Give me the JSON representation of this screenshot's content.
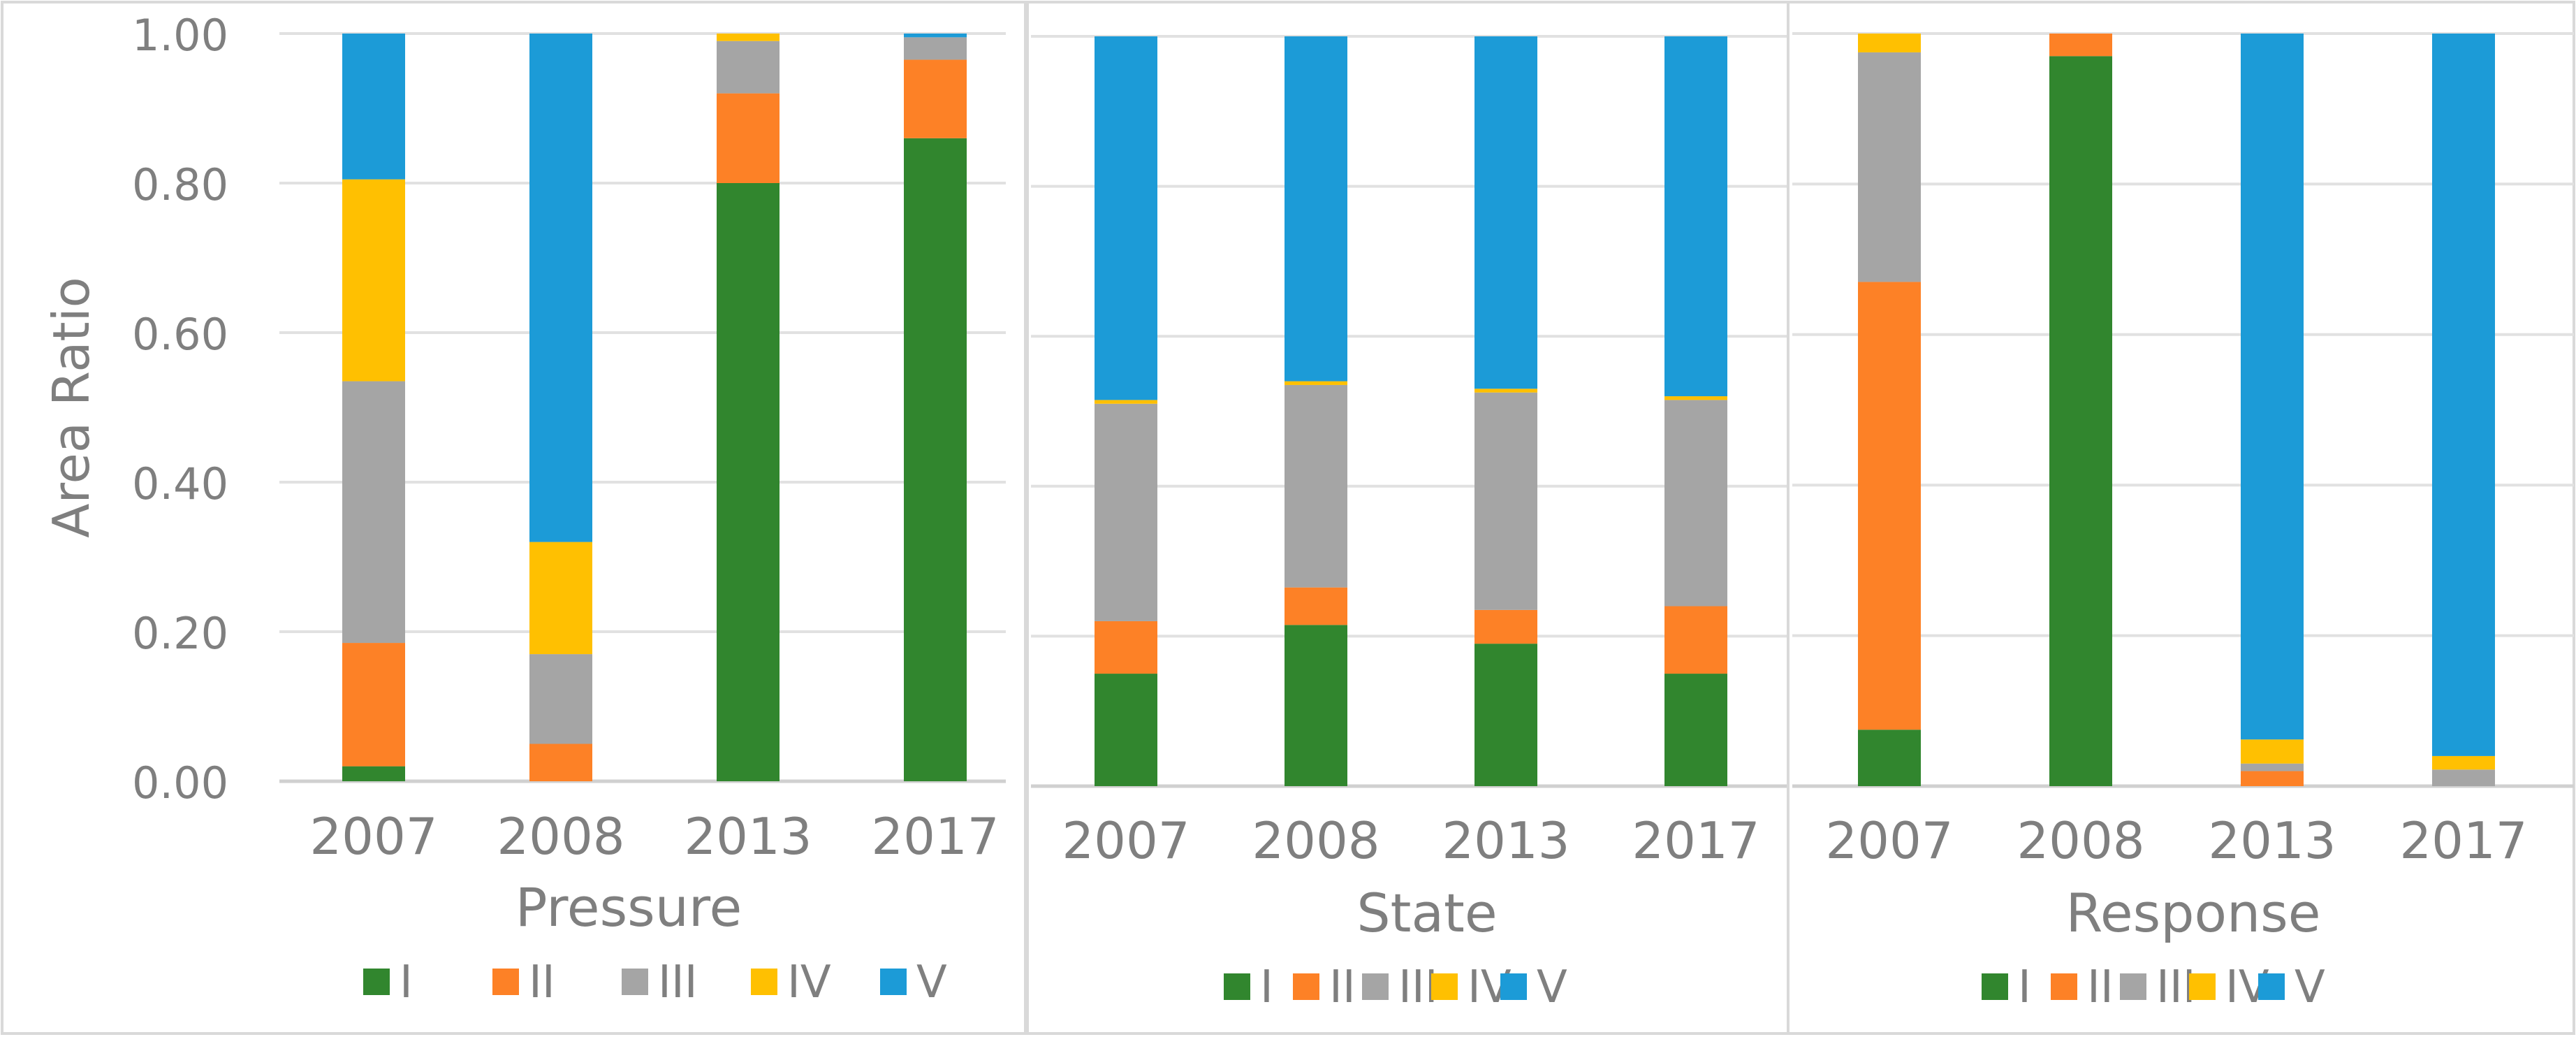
{
  "chart_data": [
    {
      "type": "bar",
      "stacked": true,
      "title": "",
      "xlabel": "Pressure",
      "ylabel": "Area Ratio",
      "categories": [
        "2007",
        "2008",
        "2013",
        "2017"
      ],
      "ylim": [
        0,
        1
      ],
      "yticks": [
        "0.00",
        "0.20",
        "0.40",
        "0.60",
        "0.80",
        "1.00"
      ],
      "grid": true,
      "legend": "bottom",
      "series": [
        {
          "name": "I",
          "color": "#31862e",
          "values": [
            0.02,
            0.0,
            0.8,
            0.86
          ]
        },
        {
          "name": "II",
          "color": "#fd8126",
          "values": [
            0.165,
            0.05,
            0.12,
            0.105
          ]
        },
        {
          "name": "III",
          "color": "#a5a5a5",
          "values": [
            0.35,
            0.12,
            0.07,
            0.03
          ]
        },
        {
          "name": "IV",
          "color": "#ffc001",
          "values": [
            0.27,
            0.15,
            0.01,
            0.0
          ]
        },
        {
          "name": "V",
          "color": "#1c9bd7",
          "values": [
            0.195,
            0.68,
            0.0,
            0.005
          ]
        }
      ]
    },
    {
      "type": "bar",
      "stacked": true,
      "title": "",
      "xlabel": "State",
      "ylabel": "",
      "categories": [
        "2007",
        "2008",
        "2013",
        "2017"
      ],
      "ylim": [
        0,
        1
      ],
      "yticks": [],
      "grid": true,
      "legend": "bottom",
      "series": [
        {
          "name": "I",
          "color": "#31862e",
          "values": [
            0.15,
            0.215,
            0.19,
            0.15
          ]
        },
        {
          "name": "II",
          "color": "#fd8126",
          "values": [
            0.07,
            0.05,
            0.045,
            0.09
          ]
        },
        {
          "name": "III",
          "color": "#a5a5a5",
          "values": [
            0.29,
            0.27,
            0.29,
            0.275
          ]
        },
        {
          "name": "IV",
          "color": "#ffc001",
          "values": [
            0.005,
            0.005,
            0.005,
            0.005
          ]
        },
        {
          "name": "V",
          "color": "#1c9bd7",
          "values": [
            0.485,
            0.46,
            0.47,
            0.48
          ]
        }
      ]
    },
    {
      "type": "bar",
      "stacked": true,
      "title": "",
      "xlabel": "Response",
      "ylabel": "",
      "categories": [
        "2007",
        "2008",
        "2013",
        "2017"
      ],
      "ylim": [
        0,
        1
      ],
      "yticks": [],
      "grid": true,
      "legend": "bottom",
      "series": [
        {
          "name": "I",
          "color": "#31862e",
          "values": [
            0.075,
            0.97,
            0.0,
            0.0
          ]
        },
        {
          "name": "II",
          "color": "#fd8126",
          "values": [
            0.595,
            0.03,
            0.02,
            0.0
          ]
        },
        {
          "name": "III",
          "color": "#a5a5a5",
          "values": [
            0.305,
            0.0,
            0.01,
            0.022
          ]
        },
        {
          "name": "IV",
          "color": "#ffc001",
          "values": [
            0.025,
            0.0,
            0.032,
            0.018
          ]
        },
        {
          "name": "V",
          "color": "#1c9bd7",
          "values": [
            0.0,
            0.0,
            0.938,
            0.96
          ]
        }
      ]
    }
  ]
}
